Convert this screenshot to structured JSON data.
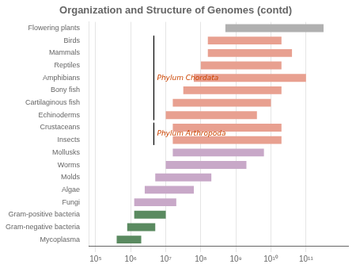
{
  "chart_data": {
    "type": "bar",
    "orientation": "horizontal",
    "title": "Organization and Structure of Genomes (contd)",
    "categories": [
      "Flowering plants",
      "Birds",
      "Mammals",
      "Reptiles",
      "Amphibians",
      "Bony fish",
      "Cartilaginous fish",
      "Echinoderms",
      "Crustaceans",
      "Insects",
      "Mollusks",
      "Worms",
      "Molds",
      "Algae",
      "Fungi",
      "Gram-positive bacteria",
      "Gram-negative bacteria",
      "Mycoplasma"
    ],
    "values": [
      [
        8.7,
        11.5
      ],
      [
        8.2,
        10.3
      ],
      [
        8.2,
        10.6
      ],
      [
        8.0,
        10.3
      ],
      [
        7.8,
        11.0
      ],
      [
        7.5,
        10.3
      ],
      [
        7.2,
        10.0
      ],
      [
        7.0,
        9.6
      ],
      [
        7.2,
        10.3
      ],
      [
        7.2,
        10.3
      ],
      [
        7.2,
        9.8
      ],
      [
        7.0,
        9.3
      ],
      [
        6.7,
        8.3
      ],
      [
        6.4,
        7.8
      ],
      [
        6.1,
        7.3
      ],
      [
        6.1,
        7.0
      ],
      [
        5.9,
        6.7
      ],
      [
        5.6,
        6.3
      ]
    ],
    "colors": [
      "#b0b0b0",
      "#e8a090",
      "#e8a090",
      "#e8a090",
      "#e8a090",
      "#e8a090",
      "#e8a090",
      "#e8a090",
      "#e8a090",
      "#e8a090",
      "#c8a8c8",
      "#c8a8c8",
      "#c8a8c8",
      "#c8a8c8",
      "#c8a8c8",
      "#5a8a60",
      "#5a8a60",
      "#5a8a60"
    ],
    "xlim": [
      4.8,
      12.2
    ],
    "xticks": [
      {
        "value": 5,
        "label": "10⁵"
      },
      {
        "value": 6,
        "label": "10⁶"
      },
      {
        "value": 7,
        "label": "10⁷"
      },
      {
        "value": 8,
        "label": "10⁸"
      },
      {
        "value": 9,
        "label": "10⁹"
      },
      {
        "value": 10,
        "label": "10¹⁰"
      },
      {
        "value": 11,
        "label": "10¹¹"
      }
    ],
    "grid": true,
    "annotations": [
      {
        "text": "Phylum Chordata",
        "x": 6.75,
        "from": "Birds",
        "to": "Echinoderms",
        "color": "#cc4400"
      },
      {
        "text": "Phylum Arthropoda",
        "x": 6.75,
        "from": "Crustaceans",
        "to": "Insects",
        "color": "#cc4400"
      }
    ]
  }
}
